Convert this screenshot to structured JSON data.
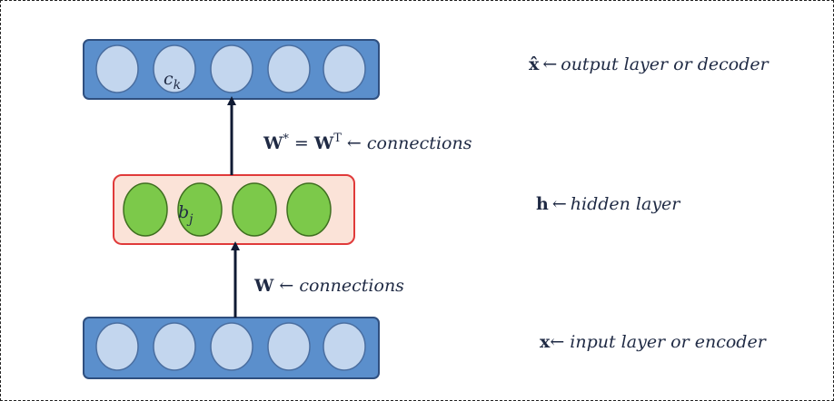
{
  "diagram": {
    "layers": {
      "output": {
        "node_label_main": "c",
        "node_label_sub": "k",
        "symbol": "x̂",
        "arrow": "←",
        "description": "output layer or  decoder"
      },
      "hidden": {
        "node_label_main": "b",
        "node_label_sub": "j",
        "symbol": "h",
        "arrow": "←",
        "description": "hidden layer"
      },
      "input": {
        "symbol": "x",
        "arrow": "←",
        "description": " input layer or encoder"
      }
    },
    "connections": {
      "upper": {
        "w": "W",
        "star": "*",
        "equals": " = ",
        "w2": "W",
        "transpose": "T",
        "arrow": " ←",
        "description": " connections"
      },
      "lower": {
        "w": "W",
        "arrow": " ←",
        "description": " connections"
      }
    },
    "colors": {
      "layer_fill": "#5b8fcc",
      "layer_stroke": "#2f4f7f",
      "node_fill": "#c3d6ee",
      "hidden_fill": "#fbe3d8",
      "hidden_stroke": "#e03a3a",
      "hidden_node_fill": "#7cc94a",
      "hidden_node_stroke": "#3f6f20",
      "arrow": "#0f1a33"
    }
  }
}
